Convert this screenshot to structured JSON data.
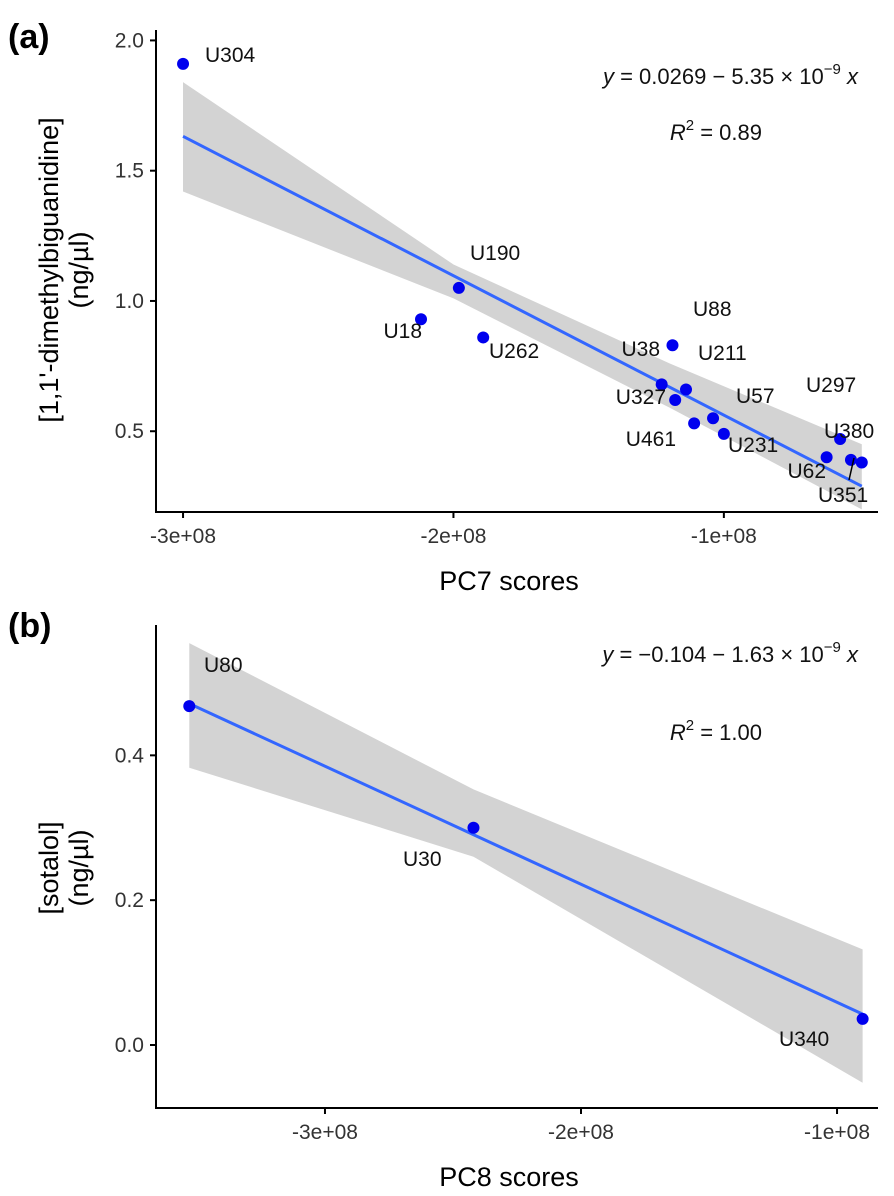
{
  "colors": {
    "points": "#0000ee",
    "fit_line": "#3366ff",
    "ribbon": "#d3d3d3",
    "axis": "#000000",
    "text": "#000000"
  },
  "chart_data": [
    {
      "panel": "(a)",
      "type": "scatter",
      "xlabel": "PC7 scores",
      "ylabel_lines": [
        "[1,1'-dimethylbiguanidine]",
        "(ng/µl)"
      ],
      "xlim": [
        -310000000.0,
        -43000000.0
      ],
      "ylim": [
        0.19,
        2.04
      ],
      "x_ticks": [
        -300000000.0,
        -200000000.0,
        -100000000.0
      ],
      "x_tick_labels": [
        "-3e+08",
        "-2e+08",
        "-1e+08"
      ],
      "y_ticks": [
        0.5,
        1.0,
        1.5,
        2.0
      ],
      "y_tick_labels": [
        "0.5",
        "1.0",
        "1.5",
        "2.0"
      ],
      "grid": false,
      "equation": {
        "y": "y",
        "rhs": " = 0.0269 − 5.35 × 10",
        "exp": "−9",
        "x": " x"
      },
      "r2": {
        "R": "R",
        "exp": "2",
        "rhs": " = 0.89"
      },
      "fit": {
        "intercept": 0.0269,
        "slope": -5.35e-09,
        "x_range": [
          -300000000.0,
          -49000000.0
        ]
      },
      "confidence_band": {
        "x": [
          -300000000.0,
          -200000000.0,
          -120000000.0,
          -49000000.0
        ],
        "lower": [
          1.42,
          1.01,
          0.59,
          0.2
        ],
        "upper": [
          1.84,
          1.14,
          0.76,
          0.45
        ]
      },
      "points": [
        {
          "label": "U304",
          "x": -300000000.0,
          "y": 1.91
        },
        {
          "label": "U190",
          "x": -198000000.0,
          "y": 1.05
        },
        {
          "label": "U18",
          "x": -212000000.0,
          "y": 0.93
        },
        {
          "label": "U262",
          "x": -189000000.0,
          "y": 0.86
        },
        {
          "label": "U88",
          "x": -119000000.0,
          "y": 0.83
        },
        {
          "label": "U38",
          "x": -123000000.0,
          "y": 0.68
        },
        {
          "label": "U211",
          "x": -114000000.0,
          "y": 0.66
        },
        {
          "label": "U327",
          "x": -118000000.0,
          "y": 0.62
        },
        {
          "label": "U57",
          "x": -104000000.0,
          "y": 0.55
        },
        {
          "label": "U461",
          "x": -111000000.0,
          "y": 0.53
        },
        {
          "label": "U231",
          "x": -100000000.0,
          "y": 0.49
        },
        {
          "label": "U297",
          "x": -57000000.0,
          "y": 0.47
        },
        {
          "label": "U62",
          "x": -62000000.0,
          "y": 0.4
        },
        {
          "label": "U380",
          "x": -53000000.0,
          "y": 0.39
        },
        {
          "label": "U351",
          "x": -49000000.0,
          "y": 0.38
        }
      ]
    },
    {
      "panel": "(b)",
      "type": "scatter",
      "xlabel": "PC8 scores",
      "ylabel_lines": [
        "[sotalol]",
        "(ng/µl)"
      ],
      "xlim": [
        -366000000.0,
        -84000000.0
      ],
      "ylim": [
        -0.087,
        0.58
      ],
      "x_ticks": [
        -300000000.0,
        -200000000.0,
        -100000000.0
      ],
      "x_tick_labels": [
        "-3e+08",
        "-2e+08",
        "-1e+08"
      ],
      "y_ticks": [
        0.0,
        0.2,
        0.4
      ],
      "y_tick_labels": [
        "0.0",
        "0.2",
        "0.4"
      ],
      "grid": false,
      "equation": {
        "y": "y",
        "rhs": " = −0.104 − 1.63 × 10",
        "exp": "−9",
        "x": " x"
      },
      "r2": {
        "R": "R",
        "exp": "2",
        "rhs": " = 1.00"
      },
      "fit": {
        "intercept": -0.104,
        "slope": -1.63e-09,
        "x_range": [
          -353000000.0,
          -90000000.0
        ]
      },
      "confidence_band": {
        "x": [
          -353000000.0,
          -242000000.0,
          -90000000.0
        ],
        "lower": [
          0.383,
          0.26,
          -0.052
        ],
        "upper": [
          0.555,
          0.353,
          0.132
        ]
      },
      "points": [
        {
          "label": "U80",
          "x": -353000000.0,
          "y": 0.468
        },
        {
          "label": "U30",
          "x": -242000000.0,
          "y": 0.3
        },
        {
          "label": "U340",
          "x": -90000000.0,
          "y": 0.036
        }
      ]
    }
  ]
}
